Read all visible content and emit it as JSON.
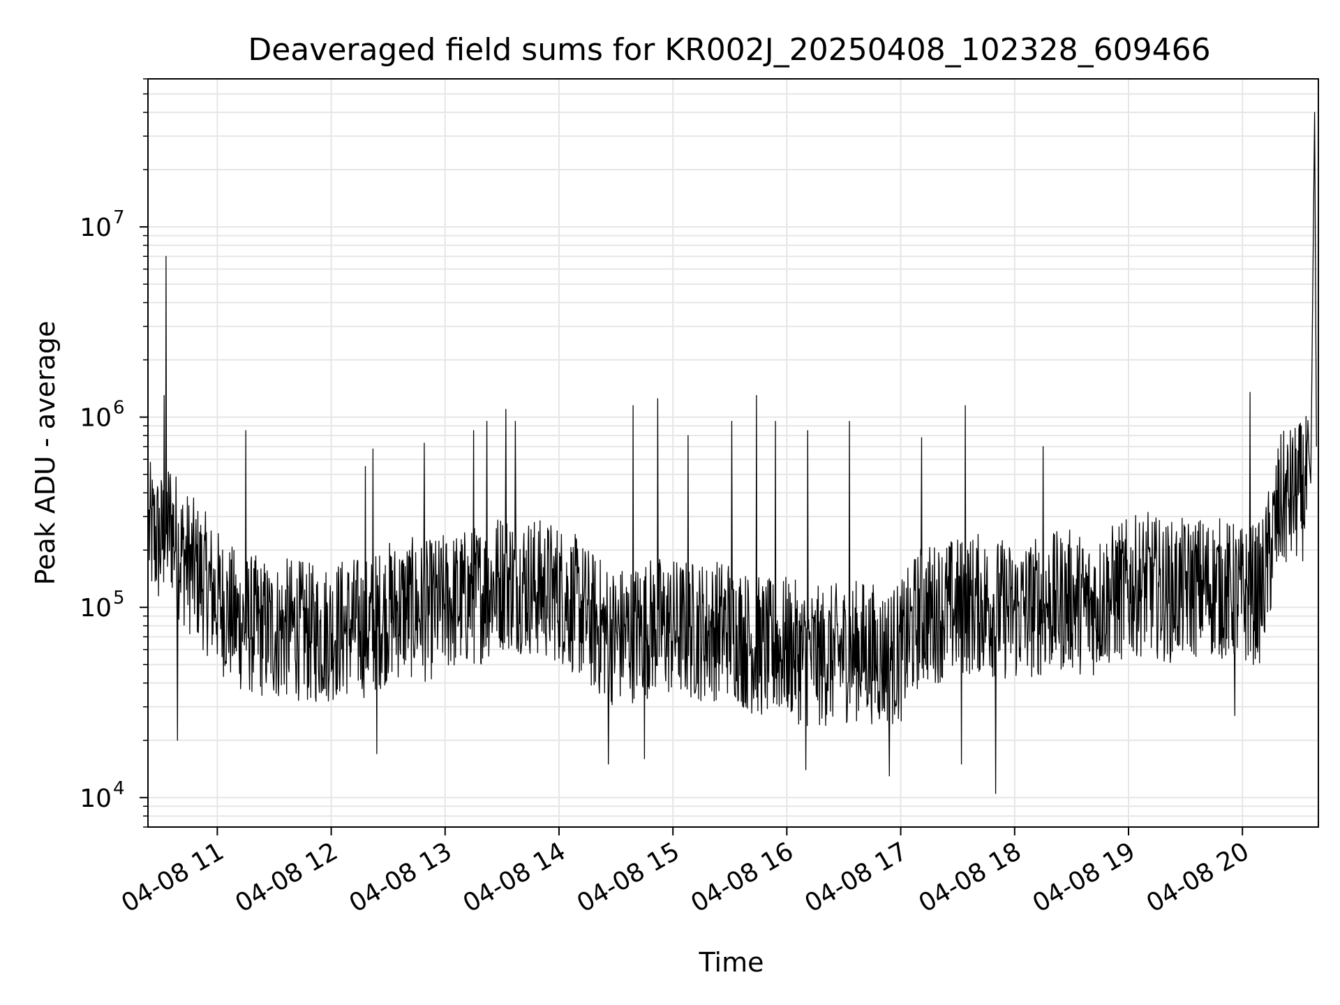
{
  "chart_data": {
    "type": "line",
    "title": "Deaveraged field sums for KR002J_20250408_102328_609466",
    "xlabel": "Time",
    "ylabel": "Peak ADU - average",
    "yscale": "log",
    "ylim": [
      7000,
      60000000
    ],
    "xlim": [
      "2025-04-08 10:23:28",
      "2025-04-08 20:40:00"
    ],
    "grid": true,
    "line_color": "#000000",
    "grid_color": "#e6e6e6",
    "x_ticks": [
      {
        "t": "2025-04-08 11:00",
        "label": "04-08 11"
      },
      {
        "t": "2025-04-08 12:00",
        "label": "04-08 12"
      },
      {
        "t": "2025-04-08 13:00",
        "label": "04-08 13"
      },
      {
        "t": "2025-04-08 14:00",
        "label": "04-08 14"
      },
      {
        "t": "2025-04-08 15:00",
        "label": "04-08 15"
      },
      {
        "t": "2025-04-08 16:00",
        "label": "04-08 16"
      },
      {
        "t": "2025-04-08 17:00",
        "label": "04-08 17"
      },
      {
        "t": "2025-04-08 18:00",
        "label": "04-08 18"
      },
      {
        "t": "2025-04-08 19:00",
        "label": "04-08 19"
      },
      {
        "t": "2025-04-08 20:00",
        "label": "04-08 20"
      }
    ],
    "y_ticks": [
      {
        "value": 10000,
        "base": "10",
        "exp": "4"
      },
      {
        "value": 100000,
        "base": "10",
        "exp": "5"
      },
      {
        "value": 1000000,
        "base": "10",
        "exp": "6"
      },
      {
        "value": 10000000,
        "base": "10",
        "exp": "7"
      }
    ],
    "series": [
      {
        "x": [
          "2025-04-08 10:24",
          "2025-04-08 10:30",
          "2025-04-08 10:35",
          "2025-04-08 10:40",
          "2025-04-08 10:45",
          "2025-04-08 10:50",
          "2025-04-08 10:55",
          "2025-04-08 11:00",
          "2025-04-08 11:10",
          "2025-04-08 11:20",
          "2025-04-08 11:30",
          "2025-04-08 11:40",
          "2025-04-08 11:50",
          "2025-04-08 12:00",
          "2025-04-08 12:10",
          "2025-04-08 12:20",
          "2025-04-08 12:30",
          "2025-04-08 12:40",
          "2025-04-08 12:50",
          "2025-04-08 13:00",
          "2025-04-08 13:10",
          "2025-04-08 13:20",
          "2025-04-08 13:30",
          "2025-04-08 13:40",
          "2025-04-08 13:50",
          "2025-04-08 14:00",
          "2025-04-08 14:10",
          "2025-04-08 14:20",
          "2025-04-08 14:30",
          "2025-04-08 14:40",
          "2025-04-08 14:50",
          "2025-04-08 15:00",
          "2025-04-08 15:10",
          "2025-04-08 15:20",
          "2025-04-08 15:30",
          "2025-04-08 15:40",
          "2025-04-08 15:50",
          "2025-04-08 16:00",
          "2025-04-08 16:10",
          "2025-04-08 16:20",
          "2025-04-08 16:30",
          "2025-04-08 16:40",
          "2025-04-08 16:50",
          "2025-04-08 17:00",
          "2025-04-08 17:10",
          "2025-04-08 17:20",
          "2025-04-08 17:30",
          "2025-04-08 17:40",
          "2025-04-08 17:50",
          "2025-04-08 18:00",
          "2025-04-08 18:10",
          "2025-04-08 18:20",
          "2025-04-08 18:30",
          "2025-04-08 18:40",
          "2025-04-08 18:50",
          "2025-04-08 19:00",
          "2025-04-08 19:10",
          "2025-04-08 19:20",
          "2025-04-08 19:30",
          "2025-04-08 19:40",
          "2025-04-08 19:50",
          "2025-04-08 20:00",
          "2025-04-08 20:10",
          "2025-04-08 20:20",
          "2025-04-08 20:30",
          "2025-04-08 20:36",
          "2025-04-08 20:38",
          "2025-04-08 20:39"
        ],
        "y": [
          250000,
          220000,
          280000,
          200000,
          170000,
          150000,
          130000,
          110000,
          85000,
          80000,
          75000,
          78000,
          72000,
          75000,
          80000,
          78000,
          95000,
          100000,
          95000,
          105000,
          110000,
          120000,
          140000,
          135000,
          125000,
          120000,
          100000,
          80000,
          70000,
          75000,
          80000,
          78000,
          76000,
          75000,
          80000,
          65000,
          60000,
          62000,
          55000,
          55000,
          58000,
          60000,
          55000,
          58000,
          90000,
          95000,
          100000,
          105000,
          100000,
          95000,
          100000,
          105000,
          110000,
          100000,
          115000,
          125000,
          135000,
          120000,
          125000,
          130000,
          125000,
          115000,
          120000,
          350000,
          400000,
          450000,
          40000000,
          700000
        ],
        "spikes": [
          {
            "x": "2025-04-08 10:33",
            "y": 7000000
          },
          {
            "x": "2025-04-08 10:32",
            "y": 1300000
          },
          {
            "x": "2025-04-08 10:39",
            "y": 20000
          },
          {
            "x": "2025-04-08 11:15",
            "y": 850000
          },
          {
            "x": "2025-04-08 12:18",
            "y": 550000
          },
          {
            "x": "2025-04-08 12:22",
            "y": 680000
          },
          {
            "x": "2025-04-08 12:24",
            "y": 17000
          },
          {
            "x": "2025-04-08 12:49",
            "y": 730000
          },
          {
            "x": "2025-04-08 13:15",
            "y": 850000
          },
          {
            "x": "2025-04-08 13:22",
            "y": 950000
          },
          {
            "x": "2025-04-08 13:32",
            "y": 1100000
          },
          {
            "x": "2025-04-08 13:37",
            "y": 950000
          },
          {
            "x": "2025-04-08 14:26",
            "y": 15000
          },
          {
            "x": "2025-04-08 14:39",
            "y": 1150000
          },
          {
            "x": "2025-04-08 14:45",
            "y": 16000
          },
          {
            "x": "2025-04-08 14:52",
            "y": 1250000
          },
          {
            "x": "2025-04-08 15:08",
            "y": 800000
          },
          {
            "x": "2025-04-08 15:31",
            "y": 950000
          },
          {
            "x": "2025-04-08 15:44",
            "y": 1300000
          },
          {
            "x": "2025-04-08 15:54",
            "y": 950000
          },
          {
            "x": "2025-04-08 16:10",
            "y": 14000
          },
          {
            "x": "2025-04-08 16:11",
            "y": 850000
          },
          {
            "x": "2025-04-08 16:33",
            "y": 950000
          },
          {
            "x": "2025-04-08 16:54",
            "y": 13000
          },
          {
            "x": "2025-04-08 17:11",
            "y": 780000
          },
          {
            "x": "2025-04-08 17:32",
            "y": 15000
          },
          {
            "x": "2025-04-08 17:34",
            "y": 1150000
          },
          {
            "x": "2025-04-08 17:50",
            "y": 10500
          },
          {
            "x": "2025-04-08 18:15",
            "y": 700000
          },
          {
            "x": "2025-04-08 19:56",
            "y": 27000
          },
          {
            "x": "2025-04-08 20:04",
            "y": 1350000
          }
        ]
      }
    ]
  }
}
